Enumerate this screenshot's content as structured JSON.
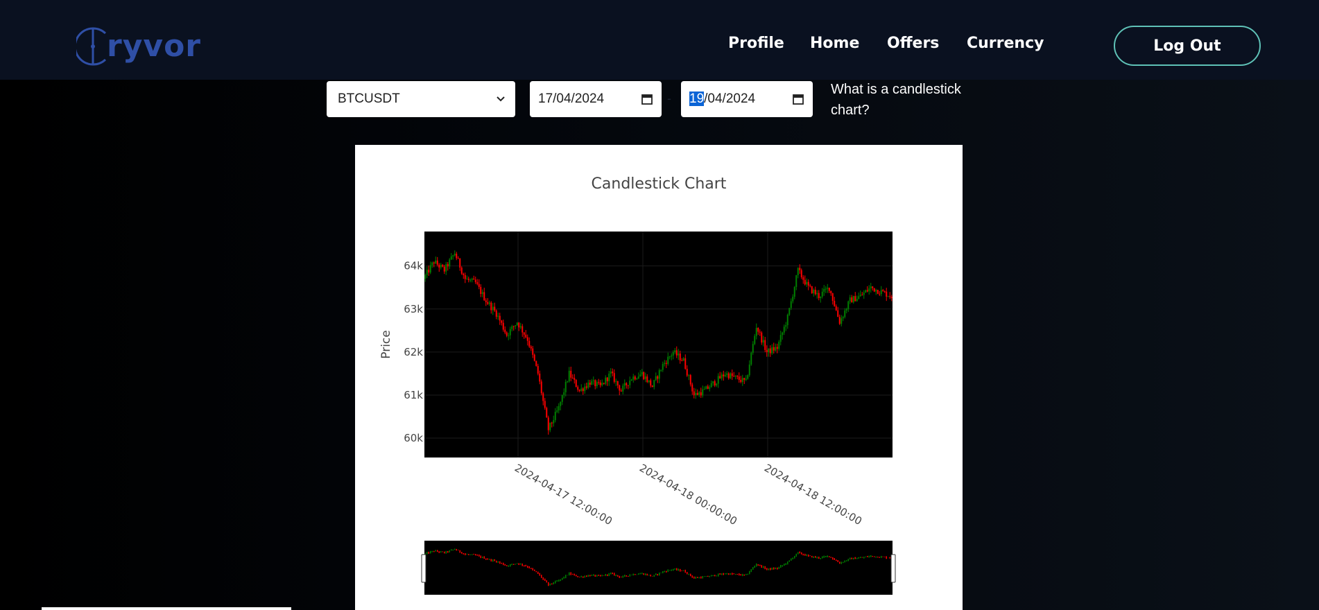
{
  "brand": {
    "logo_text": "ryvor"
  },
  "nav": {
    "items": [
      {
        "label": "Profile"
      },
      {
        "label": "Home"
      },
      {
        "label": "Offers"
      },
      {
        "label": "Currency"
      }
    ],
    "logout_label": "Log Out"
  },
  "controls": {
    "symbol": "BTCUSDT",
    "start_date": "17/04/2024",
    "end_date_day": "19",
    "end_date_rest": "/04/2024",
    "date_separator": "-",
    "help_link": "What is a candlestick chart?"
  },
  "colors": {
    "nav_background": "#0a1120",
    "logo": "#2f4fa6",
    "logout_border": "#5fc2b7",
    "increasing": "#008000",
    "decreasing": "#ff0000",
    "plot_background": "#000000"
  },
  "chart_data": {
    "type": "candlestick",
    "title": "Candlestick Chart",
    "ylabel": "Price",
    "xlabel": "",
    "y_ticks": [
      "60k",
      "61k",
      "62k",
      "63k",
      "64k"
    ],
    "x_ticks": [
      "2024-04-17 12:00:00",
      "2024-04-18 00:00:00",
      "2024-04-18 12:00:00"
    ],
    "x_range": [
      "2024-04-17 03:00:00",
      "2024-04-19 00:00:00"
    ],
    "y_range": [
      59550,
      64800
    ],
    "grid": true,
    "rangeslider": true,
    "price_path": [
      [
        "2024-04-17 03:00",
        63700
      ],
      [
        "2024-04-17 04:00",
        64100
      ],
      [
        "2024-04-17 05:00",
        63900
      ],
      [
        "2024-04-17 06:00",
        64300
      ],
      [
        "2024-04-17 07:00",
        63700
      ],
      [
        "2024-04-17 08:00",
        63600
      ],
      [
        "2024-04-17 09:00",
        63200
      ],
      [
        "2024-04-17 10:00",
        62900
      ],
      [
        "2024-04-17 11:00",
        62400
      ],
      [
        "2024-04-17 12:00",
        62700
      ],
      [
        "2024-04-17 13:00",
        62300
      ],
      [
        "2024-04-17 14:00",
        61500
      ],
      [
        "2024-04-17 15:00",
        60200
      ],
      [
        "2024-04-17 16:00",
        60700
      ],
      [
        "2024-04-17 17:00",
        61500
      ],
      [
        "2024-04-17 18:00",
        61100
      ],
      [
        "2024-04-17 19:00",
        61300
      ],
      [
        "2024-04-17 20:00",
        61200
      ],
      [
        "2024-04-17 21:00",
        61500
      ],
      [
        "2024-04-17 22:00",
        61100
      ],
      [
        "2024-04-17 23:00",
        61400
      ],
      [
        "2024-04-18 00:00",
        61500
      ],
      [
        "2024-04-18 01:00",
        61200
      ],
      [
        "2024-04-18 02:00",
        61700
      ],
      [
        "2024-04-18 03:00",
        62000
      ],
      [
        "2024-04-18 04:00",
        61800
      ],
      [
        "2024-04-18 05:00",
        61000
      ],
      [
        "2024-04-18 06:00",
        61100
      ],
      [
        "2024-04-18 07:00",
        61300
      ],
      [
        "2024-04-18 08:00",
        61500
      ],
      [
        "2024-04-18 09:00",
        61400
      ],
      [
        "2024-04-18 10:00",
        61300
      ],
      [
        "2024-04-18 11:00",
        62600
      ],
      [
        "2024-04-18 12:00",
        62000
      ],
      [
        "2024-04-18 13:00",
        62100
      ],
      [
        "2024-04-18 14:00",
        62800
      ],
      [
        "2024-04-18 15:00",
        63900
      ],
      [
        "2024-04-18 16:00",
        63500
      ],
      [
        "2024-04-18 17:00",
        63300
      ],
      [
        "2024-04-18 18:00",
        63500
      ],
      [
        "2024-04-18 19:00",
        62700
      ],
      [
        "2024-04-18 20:00",
        63200
      ],
      [
        "2024-04-18 21:00",
        63300
      ],
      [
        "2024-04-18 22:00",
        63500
      ],
      [
        "2024-04-18 23:00",
        63400
      ],
      [
        "2024-04-19 00:00",
        63300
      ]
    ]
  }
}
